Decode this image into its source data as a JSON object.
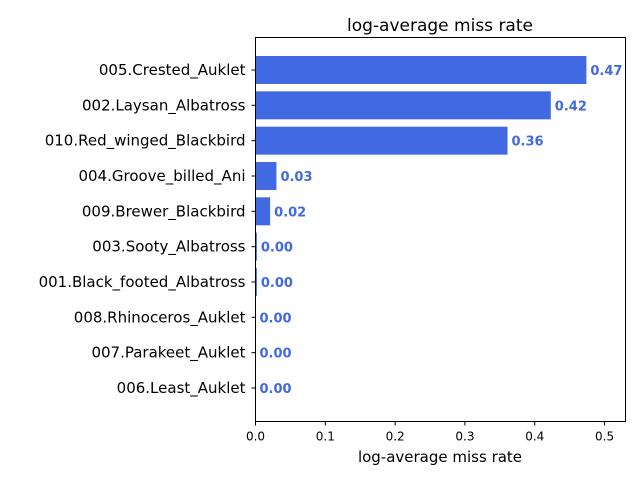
{
  "chart_data": {
    "type": "bar",
    "orientation": "horizontal",
    "title": "log-average miss rate",
    "xlabel": "log-average miss rate",
    "ylabel": "",
    "categories": [
      "005.Crested_Auklet",
      "002.Laysan_Albatross",
      "010.Red_winged_Blackbird",
      "004.Groove_billed_Ani",
      "009.Brewer_Blackbird",
      "003.Sooty_Albatross",
      "001.Black_footed_Albatross",
      "008.Rhinoceros_Auklet",
      "007.Parakeet_Auklet",
      "006.Least_Auklet"
    ],
    "values": [
      0.474,
      0.423,
      0.361,
      0.03,
      0.021,
      0.002,
      0.002,
      0.0,
      0.0,
      0.0
    ],
    "value_labels": [
      "0.47",
      "0.42",
      "0.36",
      "0.03",
      "0.02",
      "0.00",
      "0.00",
      "0.00",
      "0.00",
      "0.00"
    ],
    "xlim": [
      0,
      0.53
    ],
    "xticks": [
      "0.0",
      "0.1",
      "0.2",
      "0.3",
      "0.4",
      "0.5"
    ],
    "xtick_values": [
      0.0,
      0.1,
      0.2,
      0.3,
      0.4,
      0.5
    ],
    "bar_color": "#4169e1",
    "label_color": "#4169e1",
    "grid": false,
    "legend": "none"
  }
}
